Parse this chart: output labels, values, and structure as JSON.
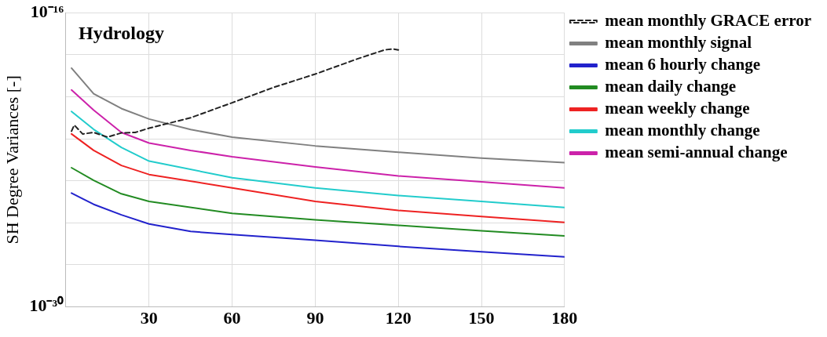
{
  "chart_data": {
    "type": "line",
    "title": "Hydrology",
    "ylabel": "SH Degree Variances [-]",
    "log": "y",
    "grid": true,
    "legend": "top right",
    "marker": "none",
    "xlim": [
      0,
      180
    ],
    "xticks": [
      30,
      60,
      90,
      120,
      150,
      180
    ],
    "ylim": [
      1e-30,
      1e-16
    ],
    "yticks": [
      {
        "value": 1e-30,
        "label": "10⁻³⁰"
      },
      {
        "value": 1e-28,
        "label": null
      },
      {
        "value": 1e-26,
        "label": null
      },
      {
        "value": 1e-24,
        "label": null
      },
      {
        "value": 1e-22,
        "label": null
      },
      {
        "value": 1e-20,
        "label": null
      },
      {
        "value": 1e-18,
        "label": null
      },
      {
        "value": 1e-16,
        "label": "10⁻¹⁶"
      }
    ],
    "series": [
      {
        "name": "mean monthly GRACE error",
        "color": "#222222",
        "line_style": "dashed",
        "x": [
          2,
          3,
          6,
          10,
          15,
          20,
          25,
          30,
          45,
          60,
          75,
          90,
          105,
          115,
          118,
          120
        ],
        "values": [
          2.3e-22,
          4.5e-22,
          1.7e-22,
          2e-22,
          1.2e-22,
          1.9e-22,
          2e-22,
          3.2e-22,
          1e-21,
          5.2e-21,
          2.8e-20,
          1.2e-19,
          6.2e-19,
          1.7e-18,
          1.9e-18,
          1.7e-18
        ]
      },
      {
        "name": "mean monthly signal",
        "color": "#808080",
        "x": [
          2,
          10,
          20,
          30,
          45,
          60,
          90,
          120,
          150,
          180
        ],
        "values": [
          2.3e-19,
          1.4e-20,
          2.75e-21,
          8.7e-22,
          2.75e-22,
          1.2e-22,
          4.6e-23,
          2.3e-23,
          1.2e-23,
          7.4e-24
        ]
      },
      {
        "name": "mean 6 hourly change",
        "color": "#2222cc",
        "x": [
          2,
          10,
          20,
          30,
          45,
          60,
          90,
          120,
          150,
          180
        ],
        "values": [
          2.6e-25,
          7.6e-26,
          2.4e-26,
          8.9e-27,
          3.9e-27,
          2.8e-27,
          1.5e-27,
          7.6e-28,
          4.2e-28,
          2.4e-28
        ]
      },
      {
        "name": "mean daily change",
        "color": "#228b22",
        "x": [
          2,
          10,
          20,
          30,
          60,
          90,
          120,
          150,
          180
        ],
        "values": [
          4.2e-24,
          1.05e-24,
          2.4e-25,
          1.05e-25,
          2.8e-26,
          1.4e-26,
          7.6e-27,
          4.2e-27,
          2.4e-27
        ]
      },
      {
        "name": "mean weekly change",
        "color": "#ee2222",
        "x": [
          2,
          10,
          20,
          30,
          60,
          90,
          120,
          150,
          180
        ],
        "values": [
          1.7e-22,
          2.8e-23,
          5.4e-24,
          2e-24,
          4.6e-25,
          1.05e-25,
          3.9e-26,
          2e-26,
          1.05e-26
        ]
      },
      {
        "name": "mean monthly change",
        "color": "#22cccc",
        "x": [
          2,
          10,
          20,
          30,
          60,
          90,
          120,
          150,
          180
        ],
        "values": [
          2e-21,
          2.8e-22,
          3.9e-23,
          8.7e-24,
          1.4e-24,
          4.6e-25,
          2e-25,
          1.05e-25,
          5.4e-26
        ]
      },
      {
        "name": "mean semi-annual change",
        "color": "#cc22aa",
        "x": [
          2,
          10,
          20,
          30,
          45,
          60,
          90,
          120,
          150,
          180
        ],
        "values": [
          2.1e-20,
          2.3e-21,
          2e-22,
          6.3e-23,
          2.8e-23,
          1.4e-23,
          4.6e-24,
          1.7e-24,
          8.9e-25,
          4.6e-25
        ]
      }
    ]
  }
}
